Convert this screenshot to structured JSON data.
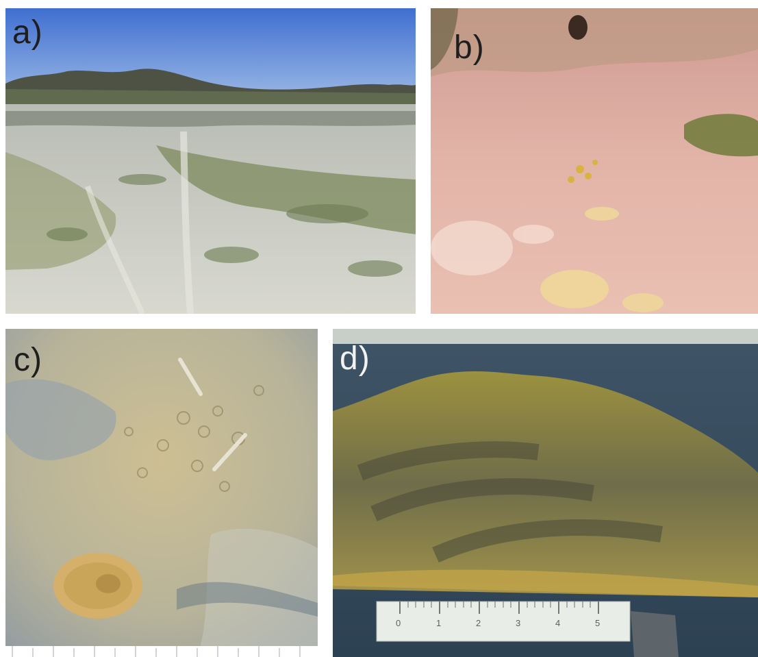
{
  "figure": {
    "panels": [
      {
        "id": "a",
        "label": "a)"
      },
      {
        "id": "b",
        "label": "b)"
      },
      {
        "id": "c",
        "label": "c)"
      },
      {
        "id": "d",
        "label": "d)"
      }
    ],
    "scale_bar": {
      "ticks": [
        "0",
        "1",
        "2",
        "3",
        "4",
        "5"
      ]
    }
  }
}
